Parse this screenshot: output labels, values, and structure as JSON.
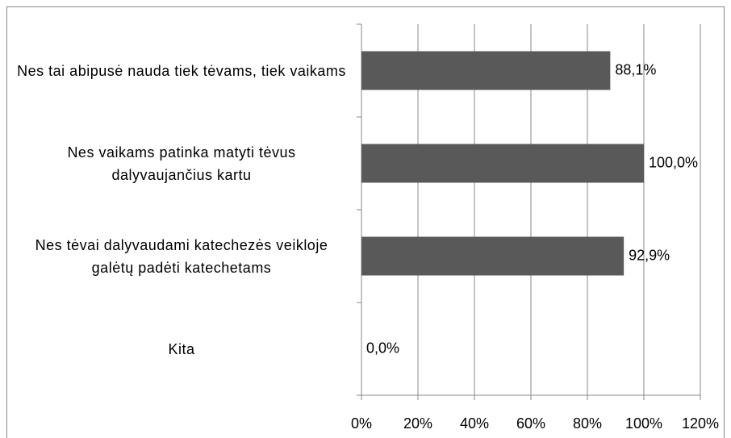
{
  "chart_data": {
    "type": "bar",
    "orientation": "horizontal",
    "categories": [
      "Nes tai abipusė nauda tiek tėvams, tiek vaikams",
      "Nes vaikams patinka matyti tėvus dalyvaujančius kartu",
      "Nes tėvai dalyvaudami katechezės veikloje galėtų padėti katechetams",
      "Kita"
    ],
    "values": [
      88.1,
      100.0,
      92.9,
      0.0
    ],
    "value_labels": [
      "88,1%",
      "100,0%",
      "92,9%",
      "0,0%"
    ],
    "color": "#595959",
    "xlim": [
      0,
      120
    ],
    "xticks": [
      {
        "value": 0,
        "label": "0%"
      },
      {
        "value": 20,
        "label": "20%"
      },
      {
        "value": 40,
        "label": "40%"
      },
      {
        "value": 60,
        "label": "60%"
      },
      {
        "value": 80,
        "label": "80%"
      },
      {
        "value": 100,
        "label": "100%"
      },
      {
        "value": 120,
        "label": "120%"
      }
    ],
    "grid": true
  }
}
